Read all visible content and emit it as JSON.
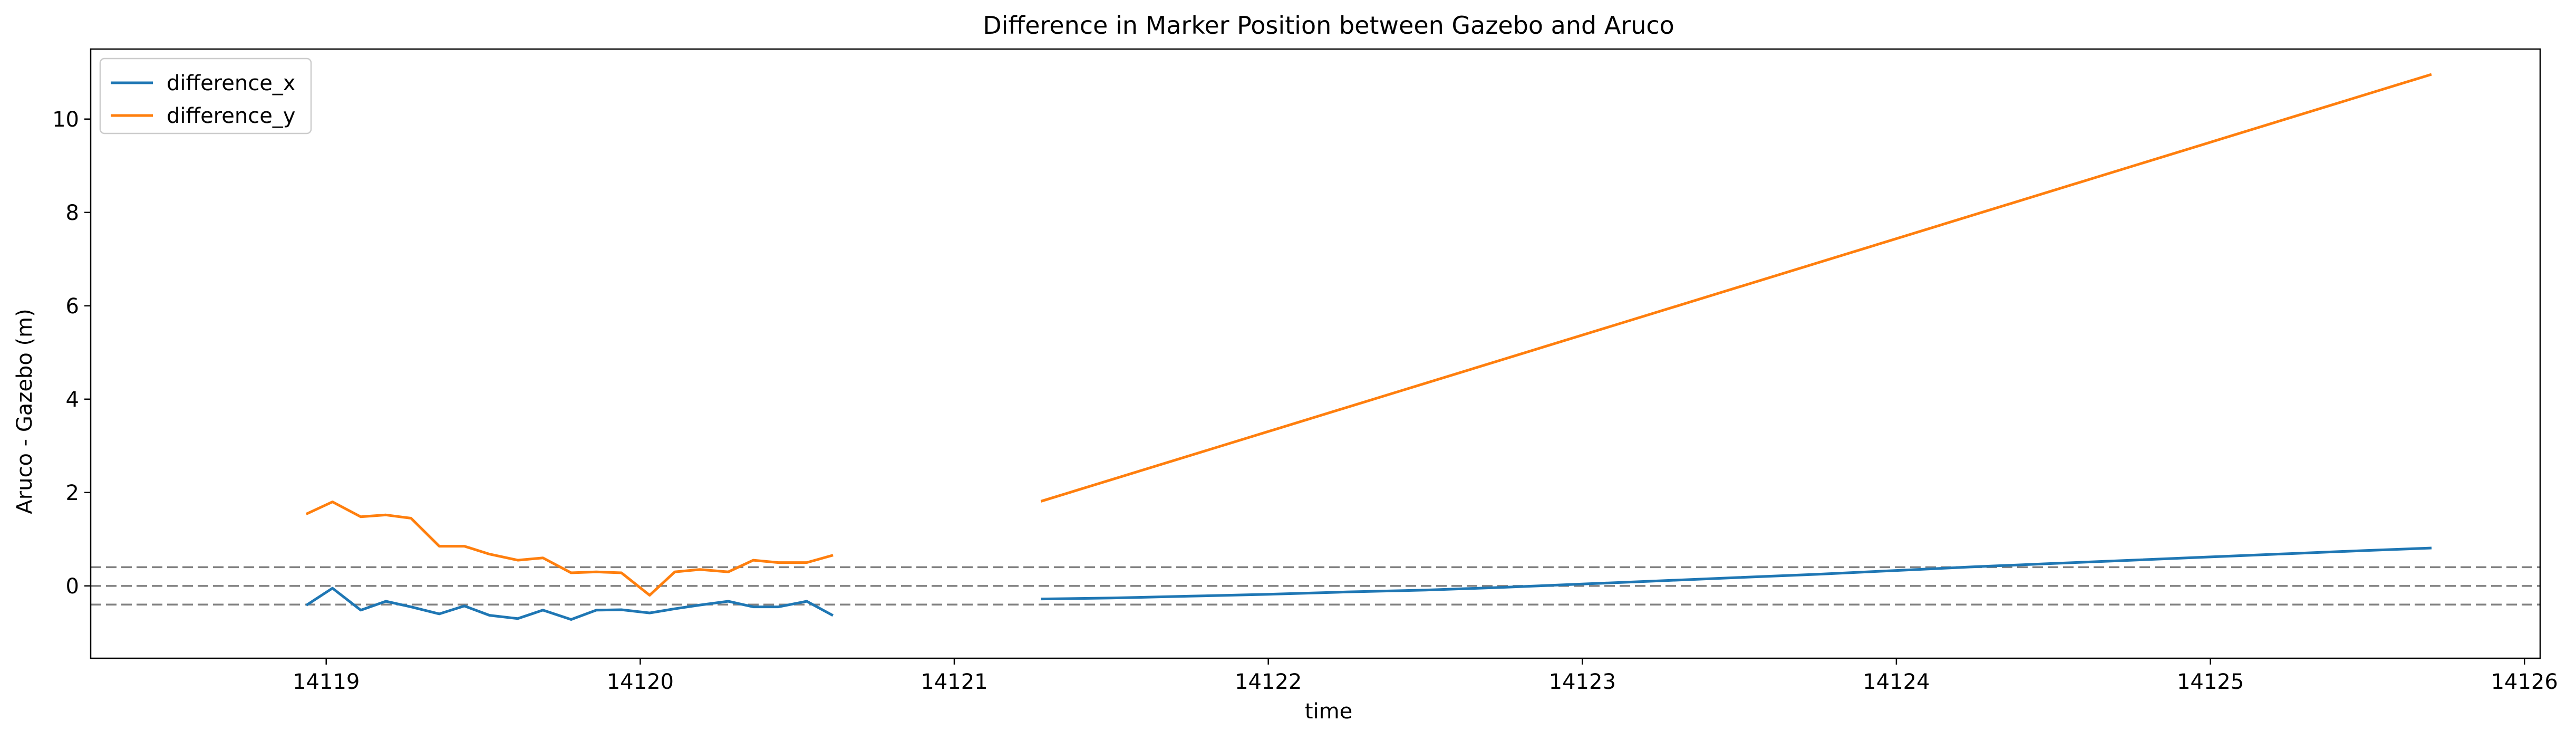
{
  "chart_data": {
    "type": "line",
    "title": "Difference in Marker Position between Gazebo and Aruco",
    "xlabel": "time",
    "ylabel": "Aruco - Gazebo (m)",
    "xlim": [
      14118.25,
      14126.05
    ],
    "ylim": [
      -1.55,
      11.5
    ],
    "xticks": [
      "14119",
      "14120",
      "14121",
      "14122",
      "14123",
      "14124",
      "14125",
      "14126"
    ],
    "xtick_values": [
      14119,
      14120,
      14121,
      14122,
      14123,
      14124,
      14125,
      14126
    ],
    "yticks": [
      "0",
      "2",
      "4",
      "6",
      "8",
      "10"
    ],
    "ytick_values": [
      0,
      2,
      4,
      6,
      8,
      10
    ],
    "reference_lines": [
      0.4,
      0.0,
      -0.4
    ],
    "legend_position": "top-left",
    "grid": false,
    "series": [
      {
        "name": "difference_x",
        "color": "#1f77b4",
        "segments": [
          {
            "x": [
              14118.94,
              14119.02,
              14119.11,
              14119.19,
              14119.27,
              14119.36,
              14119.44,
              14119.52,
              14119.61,
              14119.69,
              14119.78,
              14119.86,
              14119.94,
              14120.03,
              14120.11,
              14120.19,
              14120.28,
              14120.36,
              14120.44,
              14120.53,
              14120.61
            ],
            "y": [
              -0.4,
              -0.05,
              -0.52,
              -0.33,
              -0.45,
              -0.6,
              -0.43,
              -0.63,
              -0.7,
              -0.52,
              -0.72,
              -0.52,
              -0.51,
              -0.58,
              -0.49,
              -0.41,
              -0.33,
              -0.45,
              -0.45,
              -0.33,
              -0.62
            ]
          },
          {
            "x": [
              14121.28,
              14121.5,
              14121.75,
              14122.0,
              14122.25,
              14122.5,
              14122.75,
              14123.0,
              14123.25,
              14123.5,
              14123.75,
              14124.0,
              14124.25,
              14124.5,
              14124.75,
              14125.0,
              14125.25,
              14125.5,
              14125.7
            ],
            "y": [
              -0.28,
              -0.26,
              -0.22,
              -0.18,
              -0.13,
              -0.09,
              -0.03,
              0.04,
              0.11,
              0.18,
              0.25,
              0.33,
              0.41,
              0.48,
              0.55,
              0.62,
              0.69,
              0.76,
              0.81
            ]
          }
        ]
      },
      {
        "name": "difference_y",
        "color": "#ff7f0e",
        "segments": [
          {
            "x": [
              14118.94,
              14119.02,
              14119.11,
              14119.19,
              14119.27,
              14119.36,
              14119.44,
              14119.52,
              14119.61,
              14119.69,
              14119.78,
              14119.86,
              14119.94,
              14120.03,
              14120.11,
              14120.19,
              14120.28,
              14120.36,
              14120.44,
              14120.53,
              14120.61
            ],
            "y": [
              1.55,
              1.8,
              1.48,
              1.52,
              1.45,
              0.85,
              0.85,
              0.68,
              0.55,
              0.6,
              0.28,
              0.3,
              0.28,
              -0.2,
              0.3,
              0.35,
              0.3,
              0.55,
              0.5,
              0.5,
              0.65
            ]
          },
          {
            "x": [
              14121.28,
              14125.7
            ],
            "y": [
              1.82,
              10.95
            ]
          }
        ]
      }
    ]
  }
}
